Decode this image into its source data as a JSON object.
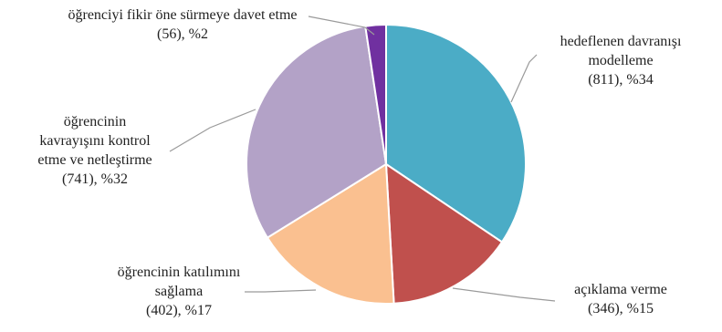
{
  "chart_data": {
    "type": "pie",
    "title": "",
    "slices": [
      {
        "category": "hedeflenen davranışı modelleme",
        "value": 811,
        "percent_label": "(811), %34",
        "label_lines": [
          "hedeflenen davranışı",
          "modelleme",
          "(811), %34"
        ],
        "color": "#4bacc6"
      },
      {
        "category": "açıklama verme",
        "value": 346,
        "percent_label": "(346), %15",
        "label_lines": [
          "açıklama verme",
          "(346), %15"
        ],
        "color": "#c0504d"
      },
      {
        "category": "öğrencinin katılımını sağlama",
        "value": 402,
        "percent_label": "(402), %17",
        "label_lines": [
          "öğrencinin katılımını",
          "sağlama",
          "(402), %17"
        ],
        "color": "#fac090"
      },
      {
        "category": "öğrencinin kavrayışını kontrol etme ve netleştirme",
        "value": 741,
        "percent_label": "(741), %32",
        "label_lines": [
          "öğrencinin",
          "kavrayışını kontrol",
          "etme ve netleştirme",
          "(741), %32"
        ],
        "color": "#b3a2c7"
      },
      {
        "category": "öğrenciyi fikir öne sürmeye davet etme",
        "value": 56,
        "percent_label": "(56), %2",
        "label_lines": [
          "öğrenciyi fikir öne sürmeye davet etme",
          "(56), %2"
        ],
        "color": "#7030a0"
      }
    ],
    "start_angle": "12 o'clock",
    "direction": "clockwise",
    "legend": "none"
  }
}
